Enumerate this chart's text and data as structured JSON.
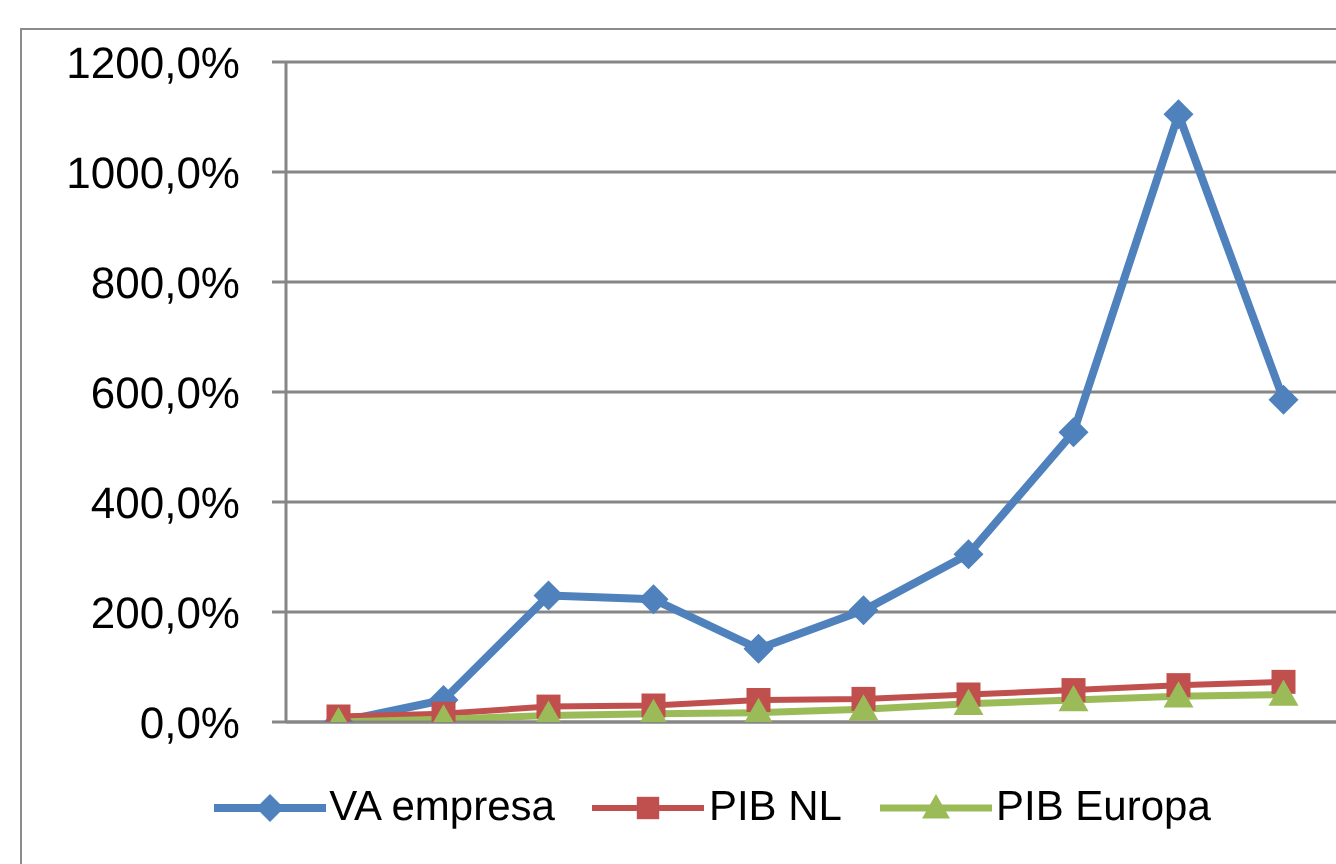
{
  "chart_data": {
    "type": "line",
    "categories": [
      null,
      null,
      null,
      null,
      null,
      null,
      null,
      null,
      null,
      null
    ],
    "series": [
      {
        "name": "VA empresa",
        "color": "#4f81bd",
        "marker": "diamond",
        "values": [
          0,
          40,
          230,
          223,
          133,
          203,
          305,
          527,
          1105,
          586
        ]
      },
      {
        "name": "PIB NL",
        "color": "#c0504d",
        "marker": "square",
        "values": [
          10,
          15,
          28,
          30,
          40,
          42,
          50,
          58,
          67,
          73
        ]
      },
      {
        "name": "PIB Europa",
        "color": "#9bbb59",
        "marker": "triangle",
        "values": [
          0,
          5,
          12,
          15,
          17,
          23,
          33,
          40,
          47,
          50
        ]
      }
    ],
    "ylim": [
      0,
      1200
    ],
    "yticks": [
      {
        "value": 0,
        "label": "0,0%"
      },
      {
        "value": 200,
        "label": "200,0%"
      },
      {
        "value": 400,
        "label": "400,0%"
      },
      {
        "value": 600,
        "label": "600,0%"
      },
      {
        "value": 800,
        "label": "800,0%"
      },
      {
        "value": 1000,
        "label": "1000,0%"
      },
      {
        "value": 1200,
        "label": "1200,0%"
      }
    ],
    "grid": "y",
    "legend": "bottom"
  }
}
